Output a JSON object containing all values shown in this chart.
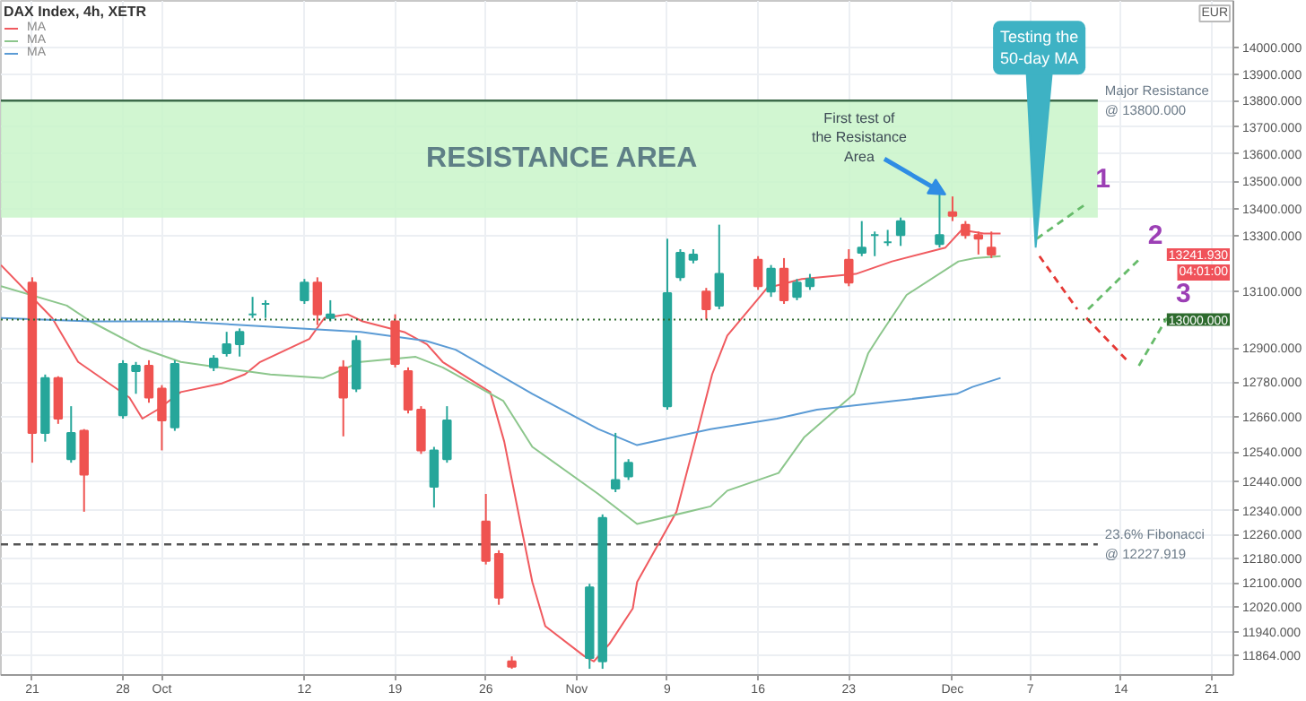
{
  "chart_data": {
    "type": "candlestick",
    "title": "DAX Index, 4h, XETR",
    "x": [
      "2020-09-21",
      "2020-09-22",
      "2020-09-23",
      "2020-09-24",
      "2020-09-25",
      "2020-09-28",
      "2020-09-29",
      "2020-09-30",
      "2020-10-01",
      "2020-10-02",
      "2020-10-05",
      "2020-10-06",
      "2020-10-07",
      "2020-10-08",
      "2020-10-09",
      "2020-10-12",
      "2020-10-13",
      "2020-10-14",
      "2020-10-15",
      "2020-10-16",
      "2020-10-19",
      "2020-10-20",
      "2020-10-21",
      "2020-10-22",
      "2020-10-23",
      "2020-10-26",
      "2020-10-27",
      "2020-10-28",
      "2020-11-03",
      "2020-11-04",
      "2020-11-05",
      "2020-11-06",
      "2020-11-09",
      "2020-11-10",
      "2020-11-11",
      "2020-11-12",
      "2020-11-13",
      "2020-11-16",
      "2020-11-17",
      "2020-11-18",
      "2020-11-19",
      "2020-11-20",
      "2020-11-23",
      "2020-11-24",
      "2020-11-25",
      "2020-11-26",
      "2020-11-27",
      "2020-11-30",
      "2020-12-01",
      "2020-12-02",
      "2020-12-03",
      "2020-12-04"
    ],
    "ohlc": [
      [
        13132,
        13151,
        12503,
        12605
      ],
      [
        12605,
        12807,
        12575,
        12795
      ],
      [
        12795,
        12801,
        12636,
        12654
      ],
      [
        12515,
        12697,
        12503,
        12605
      ],
      [
        12612,
        12618,
        12337,
        12462
      ],
      [
        12666,
        12857,
        12654,
        12844
      ],
      [
        12819,
        12851,
        12740,
        12838
      ],
      [
        12838,
        12857,
        12709,
        12727
      ],
      [
        12758,
        12770,
        12545,
        12648
      ],
      [
        12624,
        12857,
        12612,
        12844
      ],
      [
        12832,
        12875,
        12819,
        12863
      ],
      [
        12882,
        12957,
        12870,
        12913
      ],
      [
        12913,
        12969,
        12870,
        12957
      ],
      [
        13019,
        13081,
        13006,
        13019
      ],
      [
        13056,
        13069,
        13006,
        13056
      ],
      [
        13069,
        13145,
        13056,
        13132
      ],
      [
        13132,
        13151,
        12981,
        13019
      ],
      [
        13006,
        13069,
        12994,
        13019
      ],
      [
        12832,
        12857,
        12593,
        12727
      ],
      [
        12758,
        12944,
        12746,
        12925
      ],
      [
        12994,
        13019,
        12832,
        12844
      ],
      [
        12819,
        12832,
        12672,
        12685
      ],
      [
        12685,
        12697,
        12533,
        12545
      ],
      [
        12421,
        12557,
        12351,
        12545
      ],
      [
        12515,
        12697,
        12503,
        12648
      ],
      [
        12304,
        12397,
        12161,
        12173
      ],
      [
        12196,
        12208,
        12028,
        12051
      ],
      [
        11844,
        11860,
        11820,
        11827
      ],
      [
        11855,
        12097,
        11820,
        12085
      ],
      [
        11844,
        12328,
        11820,
        12316
      ],
      [
        12415,
        12605,
        12403,
        12444
      ],
      [
        12456,
        12515,
        12444,
        12503
      ],
      [
        12697,
        13290,
        12685,
        13094
      ],
      [
        13151,
        13252,
        13138,
        13239
      ],
      [
        13214,
        13252,
        13201,
        13233
      ],
      [
        13100,
        13113,
        13000,
        13037
      ],
      [
        13050,
        13341,
        13037,
        13163
      ],
      [
        13214,
        13227,
        13106,
        13119
      ],
      [
        13100,
        13195,
        13081,
        13182
      ],
      [
        13182,
        13220,
        13056,
        13069
      ],
      [
        13081,
        13145,
        13069,
        13132
      ],
      [
        13119,
        13163,
        13106,
        13145
      ],
      [
        13214,
        13252,
        13119,
        13132
      ],
      [
        13239,
        13354,
        13227,
        13258
      ],
      [
        13303,
        13316,
        13227,
        13303
      ],
      [
        13277,
        13322,
        13264,
        13277
      ],
      [
        13303,
        13367,
        13264,
        13354
      ],
      [
        13271,
        13451,
        13258,
        13303
      ],
      [
        13386,
        13444,
        13354,
        13373
      ],
      [
        13341,
        13354,
        13290,
        13303
      ],
      [
        13303,
        13316,
        13233,
        13290
      ],
      [
        13258,
        13316,
        13220,
        13233
      ]
    ],
    "series": [
      {
        "name": "MA",
        "type": "line",
        "color": "#f05a5f",
        "x": [
          "2020-09-18T14:00",
          "2020-09-22T13:00",
          "2020-09-24T13:00",
          "2020-09-28T12:00",
          "2020-09-29T12:00",
          "2020-09-30T16:00",
          "2020-10-02T11:00",
          "2020-10-05T15:00",
          "2020-10-07T10:00",
          "2020-10-08T14:00",
          "2020-10-12T09:00",
          "2020-10-13T13:00",
          "2020-10-15T08:00",
          "2020-10-16T12:00",
          "2020-10-19T17:00",
          "2020-10-21T11:00",
          "2020-10-22T16:00",
          "2020-10-26T08:00",
          "2020-10-27T10:00",
          "2020-10-28T15:00",
          "2020-10-29T14:00",
          "2020-10-30T14:00",
          "2020-11-02T14:00",
          "2020-11-03T08:00",
          "2020-11-04T13:00",
          "2020-11-06T08:00",
          "2020-11-06T16:00",
          "2020-11-09T17:00",
          "2020-11-11T09:00",
          "2020-11-12T11:00",
          "2020-11-13T15:00",
          "2020-11-16T17:00",
          "2020-11-19T09:00",
          "2020-11-23T13:00",
          "2020-11-26T08:00",
          "2020-11-30T11:00",
          "2020-12-01T17:00",
          "2020-12-03T10:00",
          "2020-12-04T17:00"
        ],
        "values": [
          13195,
          13006,
          12851,
          12727,
          12654,
          12685,
          12746,
          12776,
          12808,
          12851,
          12932,
          13006,
          13019,
          12994,
          12956,
          12913,
          12851,
          12746,
          12575,
          12308,
          12103,
          11958,
          11861,
          11844,
          11901,
          12016,
          12103,
          12337,
          12618,
          12808,
          12944,
          13113,
          13145,
          13163,
          13208,
          13258,
          13322,
          13309,
          13309
        ]
      },
      {
        "name": "MA",
        "type": "line",
        "color": "#8cc68c",
        "x": [
          "2020-09-18T14:00",
          "2020-09-23T16:00",
          "2020-09-25T12:00",
          "2020-09-29T09:00",
          "2020-10-02T11:00",
          "2020-10-09T09:00",
          "2020-10-13T11:00",
          "2020-10-16T08:00",
          "2020-10-20T14:00",
          "2020-10-22T16:00",
          "2020-10-27T08:00",
          "2020-10-29T14:00",
          "2020-11-03T16:00",
          "2020-11-06T16:00",
          "2020-11-12T08:00",
          "2020-11-13T15:00",
          "2020-11-17T14:00",
          "2020-11-19T13:00",
          "2020-11-23T10:00",
          "2020-11-24T12:00",
          "2020-11-25T09:00",
          "2020-11-27T11:00",
          "2020-12-01T11:00",
          "2020-12-02T17:00",
          "2020-12-04T17:00"
        ],
        "values": [
          13119,
          13050,
          12994,
          12900,
          12851,
          12807,
          12795,
          12851,
          12869,
          12832,
          12716,
          12557,
          12397,
          12296,
          12355,
          12408,
          12468,
          12589,
          12740,
          12882,
          12944,
          13088,
          13208,
          13220,
          13227
        ]
      },
      {
        "name": "MA",
        "type": "line",
        "color": "#5b9bd5",
        "x": [
          "2020-09-18T14:00",
          "2020-09-25T12:00",
          "2020-10-02T11:00",
          "2020-10-09T09:00",
          "2020-10-16T08:00",
          "2020-10-21T09:00",
          "2020-10-23T16:00",
          "2020-10-29T14:00",
          "2020-11-03T16:00",
          "2020-11-06T16:00",
          "2020-11-12T08:00",
          "2020-11-17T11:00",
          "2020-11-20T13:00",
          "2020-11-26T12:00",
          "2020-12-01T08:00",
          "2020-12-02T13:00",
          "2020-12-04T17:00"
        ],
        "values": [
          13006,
          12994,
          12994,
          12975,
          12957,
          12925,
          12894,
          12740,
          12618,
          12563,
          12618,
          12654,
          12685,
          12715,
          12740,
          12764,
          12795
        ]
      },
      {
        "name": "1",
        "type": "line",
        "color": "#66bb6a",
        "line_style": "dashed",
        "x": [
          "2020-12-07T12:00",
          "2020-12-11T08:00"
        ],
        "values": [
          13290,
          13418
        ]
      },
      {
        "type": "line",
        "color": "#e53935",
        "line_style": "dashed",
        "x": [
          "2020-12-07T17:00",
          "2020-12-10T15:00"
        ],
        "values": [
          13227,
          13037
        ]
      },
      {
        "name": "2",
        "type": "line",
        "color": "#66bb6a",
        "line_style": "dashed",
        "x": [
          "2020-12-11T11:00",
          "2020-12-15T09:00"
        ],
        "values": [
          13037,
          13214
        ]
      },
      {
        "type": "line",
        "color": "#e53935",
        "line_style": "dashed",
        "x": [
          "2020-12-11T08:00",
          "2020-12-14T14:00"
        ],
        "values": [
          13006,
          12851
        ]
      },
      {
        "name": "3",
        "type": "line",
        "color": "#66bb6a",
        "line_style": "dashed",
        "x": [
          "2020-12-15T09:00",
          "2020-12-17T13:00"
        ],
        "values": [
          12838,
          13006
        ]
      }
    ],
    "xlim": [
      "2020-09-18T14:00",
      "2020-12-22T16:00"
    ],
    "xticks": [
      {
        "value": "2020-09-21",
        "label": "21"
      },
      {
        "value": "2020-09-28",
        "label": "28"
      },
      {
        "value": "2020-10-01",
        "label": "Oct"
      },
      {
        "value": "2020-10-12",
        "label": "12"
      },
      {
        "value": "2020-10-19",
        "label": "19"
      },
      {
        "value": "2020-10-26",
        "label": "26"
      },
      {
        "value": "2020-11-02",
        "label": "Nov"
      },
      {
        "value": "2020-11-09",
        "label": "9"
      },
      {
        "value": "2020-11-16",
        "label": "16"
      },
      {
        "value": "2020-11-23",
        "label": "23"
      },
      {
        "value": "2020-12-01",
        "label": "Dec"
      },
      {
        "value": "2020-12-07",
        "label": "7"
      },
      {
        "value": "2020-12-14",
        "label": "14"
      },
      {
        "value": "2020-12-21",
        "label": "21"
      }
    ],
    "ylim": [
      11800,
      14180
    ],
    "log": true,
    "yticks": [
      {
        "value": 14000,
        "label": "14000.000"
      },
      {
        "value": 13900,
        "label": "13900.000"
      },
      {
        "value": 13800,
        "label": "13800.000"
      },
      {
        "value": 13700,
        "label": "13700.000"
      },
      {
        "value": 13600,
        "label": "13600.000"
      },
      {
        "value": 13500,
        "label": "13500.000"
      },
      {
        "value": 13400,
        "label": "13400.000"
      },
      {
        "value": 13300,
        "label": "13300.000"
      },
      {
        "value": 13100,
        "label": "13100.000"
      },
      {
        "value": 12900,
        "label": "12900.000"
      },
      {
        "value": 12780,
        "label": "12780.000"
      },
      {
        "value": 12660,
        "label": "12660.000"
      },
      {
        "value": 12540,
        "label": "12540.000"
      },
      {
        "value": 12440,
        "label": "12440.000"
      },
      {
        "value": 12340,
        "label": "12340.000"
      },
      {
        "value": 12260,
        "label": "12260.000"
      },
      {
        "value": 12180,
        "label": "12180.000"
      },
      {
        "value": 12100,
        "label": "12100.000"
      },
      {
        "value": 12020,
        "label": "12020.000"
      },
      {
        "value": 11940,
        "label": "11940.000"
      },
      {
        "value": 11864,
        "label": "11864.000"
      }
    ],
    "grid": true,
    "legend": "top left",
    "bands": [
      {
        "axis": "y",
        "from": 13367,
        "to": 13800,
        "label": "RESISTANCE AREA",
        "color": "#c9f5c9"
      }
    ],
    "ref_lines": [
      {
        "axis": "y",
        "value": 13800,
        "label": "Major Resistance\n@ 13800.000",
        "color": "#3d6b4a",
        "line_style": "solid"
      },
      {
        "axis": "y",
        "value": 13000,
        "label": "13000.000",
        "color": "#2e6b2e",
        "line_style": "dotted"
      },
      {
        "axis": "y",
        "value": 12227.919,
        "label": "23.6% Fibonacci\n@ 12227.919",
        "color": "#555555",
        "line_style": "dashed"
      }
    ],
    "annotations": [
      {
        "text": "First test of\nthe Resistance\nArea",
        "x": "2020-11-30T11:00",
        "y": 13451
      },
      {
        "text": "Testing the\n50-day MA",
        "x": "2020-12-07T10:00",
        "y": 13258
      },
      "EUR",
      "13241.930",
      "04:01:00"
    ]
  }
}
